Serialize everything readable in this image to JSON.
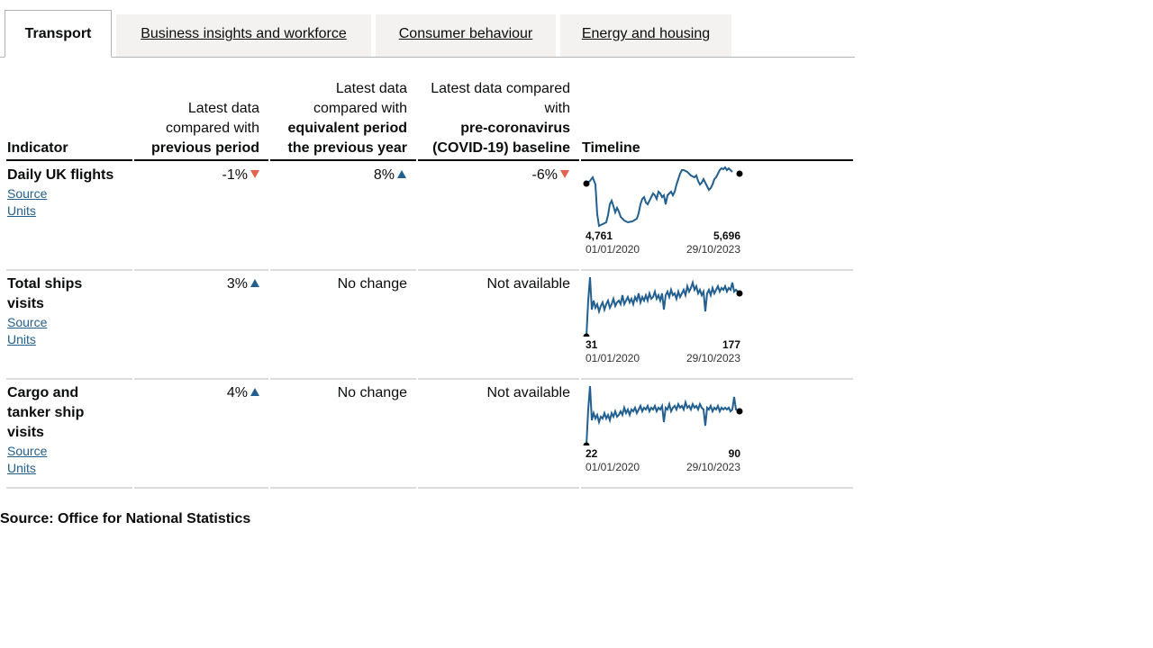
{
  "tabs": [
    {
      "label": "Transport",
      "active": true
    },
    {
      "label": "Business insights and workforce",
      "active": false
    },
    {
      "label": "Consumer behaviour",
      "active": false
    },
    {
      "label": "Energy and housing",
      "active": false
    }
  ],
  "headers": {
    "indicator": "Indicator",
    "prev_pre": "Latest data compared with",
    "prev_bold": "previous period",
    "year_pre": "Latest data compared with",
    "year_bold": "equivalent period the previous year",
    "base_pre": "Latest data compared with",
    "base_bold": "pre-coronavirus (COVID-19) baseline",
    "timeline": "Timeline"
  },
  "rows": [
    {
      "name": "Daily UK flights",
      "source_label": "Source",
      "units_label": "Units",
      "prev": "-1%",
      "prev_dir": "down",
      "year": "8%",
      "year_dir": "up",
      "base": "-6%",
      "base_dir": "down",
      "spark": {
        "start_value": "4,761",
        "end_value": "5,696",
        "start_date": "01/01/2020",
        "end_date": "29/10/2023"
      }
    },
    {
      "name": "Total ships visits",
      "source_label": "Source",
      "units_label": "Units",
      "prev": "3%",
      "prev_dir": "up",
      "year": "No change",
      "year_dir": "none",
      "base": "Not available",
      "base_dir": "none",
      "spark": {
        "start_value": "31",
        "end_value": "177",
        "start_date": "01/01/2020",
        "end_date": "29/10/2023"
      }
    },
    {
      "name": "Cargo and tanker ship visits",
      "source_label": "Source",
      "units_label": "Units",
      "prev": "4%",
      "prev_dir": "up",
      "year": "No change",
      "year_dir": "none",
      "base": "Not available",
      "base_dir": "none",
      "spark": {
        "start_value": "22",
        "end_value": "90",
        "start_date": "01/01/2020",
        "end_date": "29/10/2023"
      }
    }
  ],
  "footer": {
    "source": "Source: Office for National Statistics"
  },
  "colors": {
    "line": "#23608f",
    "up": "#23608f",
    "down": "#e0634e",
    "link": "#225f8e"
  }
}
